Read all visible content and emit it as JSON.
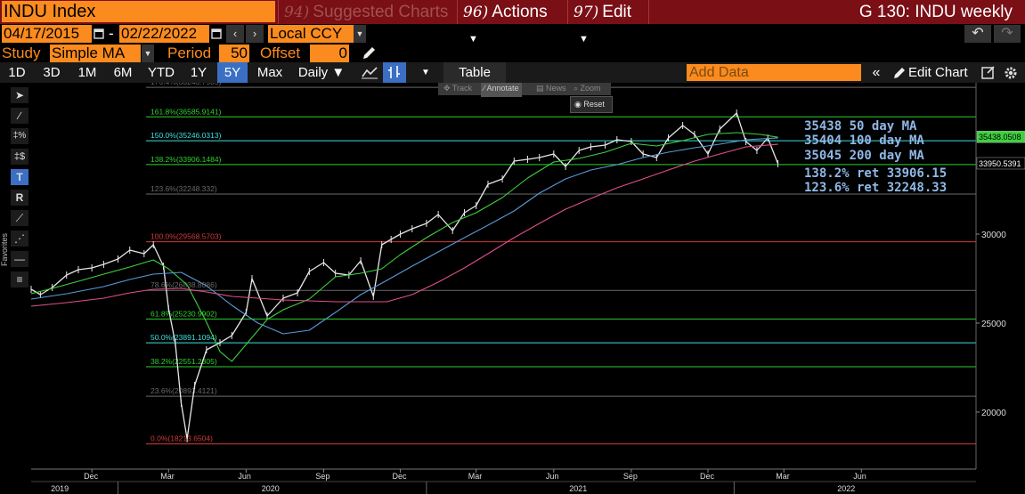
{
  "titlebar": {
    "ticker": "INDU Index",
    "suggested_num": "94)",
    "suggested_label": "Suggested Charts",
    "actions_num": "96)",
    "actions_label": "Actions",
    "edit_num": "97)",
    "edit_label": "Edit",
    "right_title": "G 130: INDU weekly"
  },
  "controls": {
    "start_date": "04/17/2015",
    "dash": "-",
    "end_date": "02/22/2022",
    "currency": "Local CCY",
    "study_label": "Study",
    "study_value": "Simple MA",
    "period_label": "Period",
    "period_value": "50",
    "offset_label": "Offset",
    "offset_value": "0"
  },
  "toolbar": {
    "ranges": [
      "1D",
      "3D",
      "1M",
      "6M",
      "YTD",
      "1Y",
      "5Y",
      "Max"
    ],
    "selected_range": "5Y",
    "frequency": "Daily",
    "table_label": "Table",
    "add_data_placeholder": "Add Data",
    "edit_chart_label": "Edit Chart"
  },
  "chart_tools": {
    "track": "Track",
    "annotate": "Annotate",
    "news": "News",
    "zoom": "Zoom",
    "reset": "Reset",
    "favorites": "Favorites"
  },
  "annotations": [
    "35438 50 day MA",
    "35404 100 day MA",
    "35045 200 day MA",
    "138.2% ret 33906.15",
    "123.6% ret 32248.33"
  ],
  "chart_data": {
    "type": "line",
    "title": "",
    "xlabel": "",
    "ylabel": "",
    "ylim": [
      16800,
      38500
    ],
    "y_ticks": [
      20000,
      25000,
      30000
    ],
    "y_tick_labels": [
      "20000",
      "25000",
      "30000"
    ],
    "x_tick_labels": [
      "Dec",
      "Mar",
      "Jun",
      "Sep",
      "Dec",
      "Mar",
      "Jun",
      "Sep",
      "Dec",
      "Mar",
      "Jun"
    ],
    "year_labels": [
      "2019",
      "2020",
      "2021",
      "2022"
    ],
    "last_value_labels": [
      "35438.0508",
      "33950.5391"
    ],
    "colors": {
      "price": "#e6e6e6",
      "ma50": "#3fd03f",
      "ma100": "#5b9ad8",
      "ma200": "#e0508f",
      "fib_green": "#2ed12e",
      "fib_red": "#d23a3a",
      "fib_cyan": "#3ee0e0",
      "fib_gray": "#6a6a6a"
    },
    "fib_levels": [
      {
        "label": "176.4%(38243.7505)",
        "value": 38243.75,
        "color": "gray"
      },
      {
        "label": "161.8%(36585.9141)",
        "value": 36585.91,
        "color": "green"
      },
      {
        "label": "150.0%(35246.0313)",
        "value": 35246.03,
        "color": "cyan"
      },
      {
        "label": "138.2%(33906.1484)",
        "value": 33906.15,
        "color": "green"
      },
      {
        "label": "123.6%(32248.332)",
        "value": 32248.33,
        "color": "gray"
      },
      {
        "label": "100.0%(29568.5703)",
        "value": 29568.57,
        "color": "red"
      },
      {
        "label": "78.6%(26838.8086)",
        "value": 26838.81,
        "color": "gray"
      },
      {
        "label": "61.8%(25230.9902)",
        "value": 25230.99,
        "color": "green"
      },
      {
        "label": "50.0%(23891.1094)",
        "value": 23891.11,
        "color": "cyan"
      },
      {
        "label": "38.2%(22551.2305)",
        "value": 22551.23,
        "color": "green"
      },
      {
        "label": "23.6%(20893.4121)",
        "value": 20893.41,
        "color": "gray"
      },
      {
        "label": "0.0%(18213.6504)",
        "value": 18213.65,
        "color": "red"
      }
    ],
    "series": [
      {
        "key": "price",
        "x": [
          "2019-09-20",
          "2019-10-01",
          "2019-10-15",
          "2019-11-01",
          "2019-11-15",
          "2019-12-01",
          "2019-12-15",
          "2020-01-01",
          "2020-01-15",
          "2020-02-01",
          "2020-02-12",
          "2020-02-24",
          "2020-03-01",
          "2020-03-09",
          "2020-03-16",
          "2020-03-23",
          "2020-04-01",
          "2020-04-15",
          "2020-05-01",
          "2020-05-15",
          "2020-06-01",
          "2020-06-08",
          "2020-06-26",
          "2020-07-15",
          "2020-08-01",
          "2020-08-15",
          "2020-09-01",
          "2020-09-15",
          "2020-10-01",
          "2020-10-15",
          "2020-10-30",
          "2020-11-09",
          "2020-11-20",
          "2020-12-01",
          "2020-12-15",
          "2021-01-01",
          "2021-01-15",
          "2021-02-01",
          "2021-02-15",
          "2021-03-01",
          "2021-03-15",
          "2021-04-01",
          "2021-04-15",
          "2021-05-01",
          "2021-05-15",
          "2021-06-01",
          "2021-06-15",
          "2021-07-01",
          "2021-07-15",
          "2021-08-01",
          "2021-08-15",
          "2021-09-01",
          "2021-09-15",
          "2021-10-01",
          "2021-10-15",
          "2021-11-01",
          "2021-11-15",
          "2021-12-01",
          "2021-12-15",
          "2022-01-04",
          "2022-01-15",
          "2022-01-28",
          "2022-02-10",
          "2022-02-22"
        ],
        "values": [
          26900,
          26600,
          27000,
          27700,
          28000,
          28100,
          28300,
          28600,
          29100,
          28900,
          29400,
          28200,
          25800,
          23900,
          20500,
          18500,
          21500,
          23500,
          23900,
          24300,
          25600,
          27500,
          25400,
          26400,
          26700,
          27900,
          28400,
          27800,
          27700,
          28500,
          26500,
          29400,
          29700,
          30000,
          30300,
          30600,
          31100,
          30200,
          31200,
          31600,
          32800,
          33100,
          34100,
          34200,
          34300,
          34500,
          33800,
          34700,
          34900,
          35000,
          35300,
          35200,
          34500,
          34300,
          35400,
          36100,
          35600,
          34500,
          35900,
          36800,
          35200,
          34700,
          35400,
          33950
        ]
      },
      {
        "key": "ma50",
        "x": [
          "2019-09-20",
          "2019-10-15",
          "2019-11-15",
          "2019-12-15",
          "2020-01-15",
          "2020-02-12",
          "2020-03-01",
          "2020-03-23",
          "2020-04-15",
          "2020-05-01",
          "2020-05-15",
          "2020-06-01",
          "2020-06-26",
          "2020-07-15",
          "2020-08-15",
          "2020-09-15",
          "2020-10-15",
          "2020-11-09",
          "2020-12-01",
          "2021-01-01",
          "2021-02-01",
          "2021-03-01",
          "2021-04-01",
          "2021-05-01",
          "2021-06-01",
          "2021-07-01",
          "2021-08-01",
          "2021-09-01",
          "2021-10-01",
          "2021-11-01",
          "2021-12-01",
          "2022-01-04",
          "2022-02-01",
          "2022-02-22"
        ],
        "values": [
          26650,
          26950,
          27350,
          27750,
          28150,
          28550,
          28050,
          27150,
          25050,
          23400,
          22850,
          23800,
          25200,
          25750,
          26350,
          27600,
          27800,
          28050,
          28850,
          29800,
          30650,
          31200,
          32050,
          33150,
          34050,
          34250,
          34600,
          35100,
          34950,
          35250,
          35600,
          35700,
          35600,
          35438
        ]
      },
      {
        "key": "ma100",
        "x": [
          "2019-09-20",
          "2019-11-01",
          "2019-12-15",
          "2020-01-15",
          "2020-02-12",
          "2020-03-16",
          "2020-04-15",
          "2020-05-15",
          "2020-06-15",
          "2020-07-15",
          "2020-08-15",
          "2020-09-15",
          "2020-10-15",
          "2020-11-15",
          "2020-12-15",
          "2021-01-15",
          "2021-02-15",
          "2021-03-15",
          "2021-04-15",
          "2021-05-15",
          "2021-06-15",
          "2021-07-15",
          "2021-08-15",
          "2021-09-15",
          "2021-10-15",
          "2021-11-15",
          "2021-12-15",
          "2022-01-15",
          "2022-02-22"
        ],
        "values": [
          26350,
          26650,
          27050,
          27450,
          27750,
          27850,
          27100,
          26000,
          25000,
          24400,
          24600,
          25600,
          26600,
          27400,
          28200,
          29000,
          29800,
          30500,
          31300,
          32300,
          33100,
          33600,
          33900,
          34300,
          34600,
          34850,
          35050,
          35300,
          35404
        ]
      },
      {
        "key": "ma200",
        "x": [
          "2019-09-20",
          "2019-11-01",
          "2019-12-15",
          "2020-01-15",
          "2020-02-12",
          "2020-03-16",
          "2020-04-15",
          "2020-05-15",
          "2020-06-15",
          "2020-07-15",
          "2020-08-15",
          "2020-09-15",
          "2020-10-15",
          "2020-11-15",
          "2020-12-15",
          "2021-01-15",
          "2021-02-15",
          "2021-03-15",
          "2021-04-15",
          "2021-05-15",
          "2021-06-15",
          "2021-07-15",
          "2021-08-15",
          "2021-09-15",
          "2021-10-15",
          "2021-11-15",
          "2021-12-15",
          "2022-01-15",
          "2022-02-22"
        ],
        "values": [
          25950,
          26150,
          26400,
          26700,
          26900,
          26950,
          26750,
          26500,
          26400,
          26300,
          26250,
          26200,
          26200,
          26200,
          26600,
          27300,
          28100,
          28900,
          29800,
          30600,
          31400,
          32000,
          32600,
          33100,
          33600,
          34100,
          34500,
          34900,
          35045
        ]
      }
    ]
  }
}
